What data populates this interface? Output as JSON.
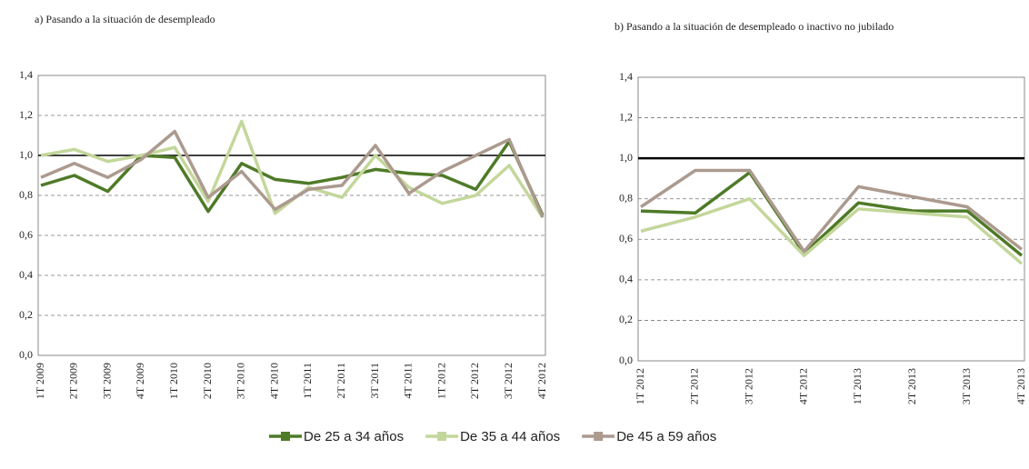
{
  "chart_data": [
    {
      "type": "line",
      "title": "a) Pasando a la situación de desempleado",
      "categories": [
        "1T 2009",
        "2T 2009",
        "3T 2009",
        "4T 2009",
        "1T 2010",
        "2T 2010",
        "3T 2010",
        "4T 2010",
        "1T 2011",
        "2T 2011",
        "3T 2011",
        "4T 2011",
        "1T 2012",
        "2T 2012",
        "3T 2012",
        "4T 2012"
      ],
      "series": [
        {
          "name": "De 25 a 34 años",
          "color": "#4f7a28",
          "values": [
            0.85,
            0.9,
            0.82,
            1.0,
            0.99,
            0.72,
            0.96,
            0.88,
            0.86,
            0.89,
            0.93,
            0.91,
            0.9,
            0.83,
            1.07,
            0.7
          ]
        },
        {
          "name": "De 35 a 44 años",
          "color": "#c4d79b",
          "values": [
            1.0,
            1.03,
            0.97,
            1.0,
            1.04,
            0.77,
            1.17,
            0.71,
            0.84,
            0.79,
            1.0,
            0.84,
            0.76,
            0.8,
            0.95,
            0.69
          ]
        },
        {
          "name": "De 45 a 59 años",
          "color": "#ac9a8f",
          "values": [
            0.89,
            0.96,
            0.89,
            0.98,
            1.12,
            0.79,
            0.92,
            0.73,
            0.83,
            0.85,
            1.05,
            0.81,
            0.92,
            1.0,
            1.08,
            0.69
          ]
        }
      ],
      "ylim": [
        0,
        1.4
      ],
      "yticks": [
        {
          "value": 0,
          "label": "0,0"
        },
        {
          "value": 0.2,
          "label": "0,2"
        },
        {
          "value": 0.4,
          "label": "0,4"
        },
        {
          "value": 0.6,
          "label": "0,6"
        },
        {
          "value": 0.8,
          "label": "0,8"
        },
        {
          "value": 1,
          "label": "1,0"
        },
        {
          "value": 1.2,
          "label": "1,2"
        },
        {
          "value": 1.4,
          "label": "1,4"
        }
      ],
      "reference_line": 1,
      "grid": true
    },
    {
      "type": "line",
      "title": "b) Pasando a la situación de desempleado o inactivo no jubilado",
      "categories": [
        "1T 2012",
        "2T 2012",
        "3T 2012",
        "4T 2012",
        "1T 2013",
        "2T 2013",
        "3T 2013",
        "4T 2013"
      ],
      "series": [
        {
          "color": "#4f7a28",
          "values": [
            0.74,
            0.73,
            0.93,
            0.53,
            0.78,
            0.74,
            0.74,
            0.52
          ]
        },
        {
          "color": "#c4d79b",
          "values": [
            0.64,
            0.71,
            0.8,
            0.52,
            0.75,
            0.73,
            0.71,
            0.48
          ]
        },
        {
          "color": "#ac9a8f",
          "values": [
            0.76,
            0.94,
            0.94,
            0.54,
            0.86,
            0.81,
            0.76,
            0.55
          ]
        }
      ],
      "ylim": [
        0,
        1.4
      ],
      "yticks": [
        {
          "value": 0,
          "label": "0,0"
        },
        {
          "value": 0.2,
          "label": "0,2"
        },
        {
          "value": 0.4,
          "label": "0,4"
        },
        {
          "value": 0.6,
          "label": "0,6"
        },
        {
          "value": 0.8,
          "label": "0,8"
        },
        {
          "value": 1,
          "label": "1,0"
        },
        {
          "value": 1.2,
          "label": "1,2"
        },
        {
          "value": 1.4,
          "label": "1,4"
        }
      ],
      "reference_line": 1,
      "grid": true
    }
  ]
}
